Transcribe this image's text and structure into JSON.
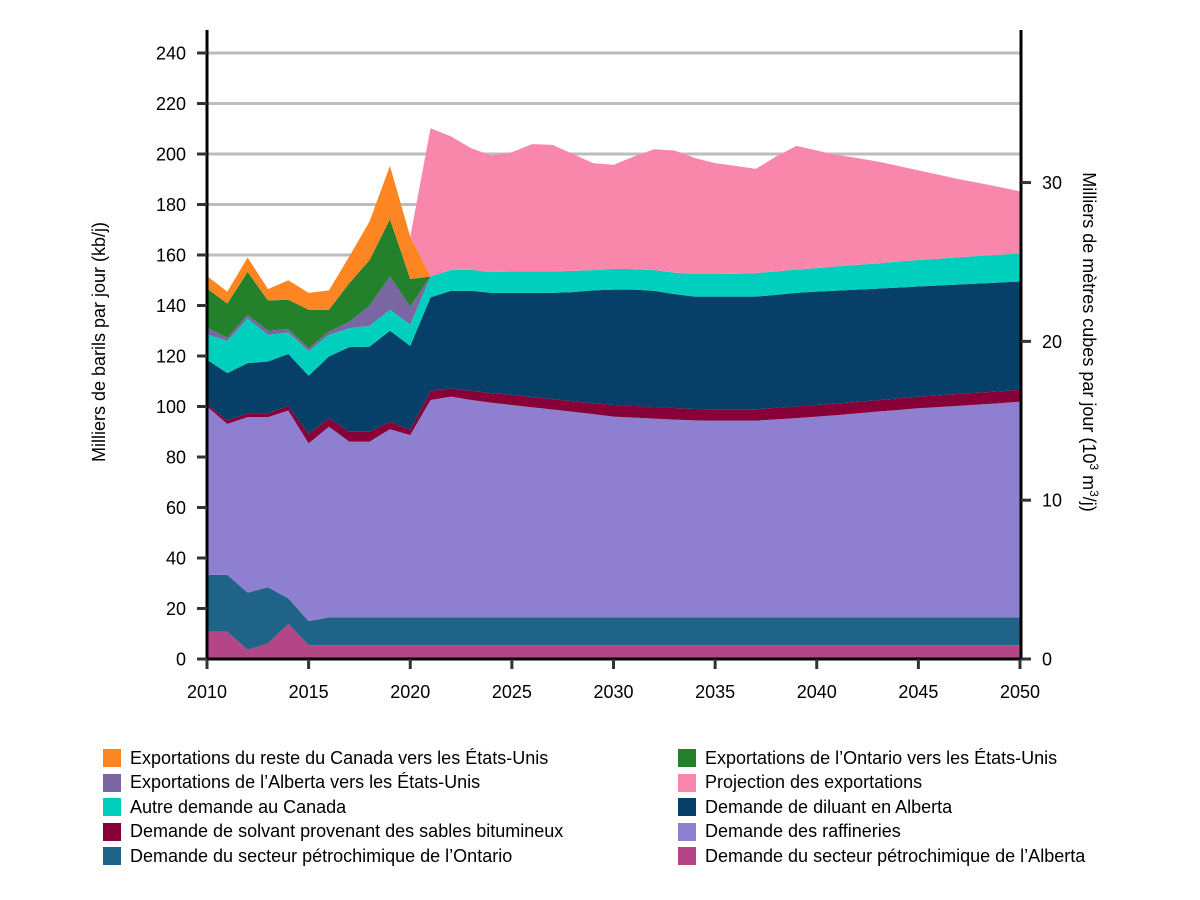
{
  "chart_data": {
    "type": "area",
    "stacked": true,
    "title": "",
    "xlabel": "",
    "ylabel": "Milliers de barils par jour (kb/j)",
    "ylabel_right": "Milliers de mètres cubes par jour (10³ m³/j)",
    "ylabel_right_parts": {
      "pre": "Milliers de mètres cubes par jour (10",
      "sup1": "3",
      "mid": " m",
      "sup2": "3",
      "post": "/j)"
    },
    "xlim": [
      2010,
      2050
    ],
    "ylim": [
      0,
      240
    ],
    "ylim_right": [
      0,
      38.16
    ],
    "grid": true,
    "x_ticks": [
      2010,
      2015,
      2020,
      2025,
      2030,
      2035,
      2040,
      2045,
      2050
    ],
    "y_ticks": [
      0,
      20,
      40,
      60,
      80,
      100,
      120,
      140,
      160,
      180,
      200,
      220,
      240
    ],
    "y_ticks_right": [
      0,
      10,
      20,
      30
    ],
    "legend_position": "bottom",
    "x": [
      2010,
      2011,
      2012,
      2013,
      2014,
      2015,
      2016,
      2017,
      2018,
      2019,
      2020,
      2021,
      2022,
      2023,
      2024,
      2025,
      2026,
      2027,
      2028,
      2029,
      2030,
      2031,
      2032,
      2033,
      2034,
      2035,
      2036,
      2037,
      2038,
      2039,
      2040,
      2041,
      2042,
      2043,
      2044,
      2045,
      2046,
      2047,
      2048,
      2049,
      2050
    ],
    "series": [
      {
        "name": "Demande du secteur pétrochimique de l’Alberta",
        "color": "#b44688",
        "values": [
          10.8,
          10.8,
          3.6,
          6.2,
          13.9,
          5.5,
          5.5,
          5.5,
          5.5,
          5.5,
          5.5,
          5.5,
          5.5,
          5.5,
          5.5,
          5.5,
          5.5,
          5.5,
          5.5,
          5.5,
          5.5,
          5.5,
          5.5,
          5.5,
          5.5,
          5.5,
          5.5,
          5.5,
          5.5,
          5.5,
          5.5,
          5.5,
          5.5,
          5.5,
          5.5,
          5.5,
          5.5,
          5.5,
          5.5,
          5.5,
          5.5
        ]
      },
      {
        "name": "Demande du secteur pétrochimique de l’Ontario",
        "color": "#1f6488",
        "values": [
          22.5,
          22.5,
          22.7,
          22.2,
          10.1,
          9.5,
          11,
          11,
          11,
          11,
          11,
          11,
          11,
          11,
          11,
          11,
          11,
          11,
          11,
          11,
          11,
          11,
          11,
          11,
          11,
          11,
          11,
          11,
          11,
          11,
          11,
          11,
          11,
          11,
          11,
          11,
          11,
          11,
          11,
          11,
          11
        ]
      },
      {
        "name": "Demande des raffineries",
        "color": "#8e7fd0",
        "values": [
          66.7,
          59.8,
          69.5,
          67.4,
          74.4,
          70.4,
          75.5,
          69.6,
          69.6,
          74.5,
          72.2,
          86.1,
          87.4,
          86.1,
          85,
          84.1,
          83.2,
          82.3,
          81.4,
          80.5,
          79.5,
          79.1,
          78.7,
          78.3,
          78,
          77.9,
          77.9,
          77.9,
          78.4,
          78.9,
          79.5,
          80.1,
          80.8,
          81.5,
          82.1,
          82.8,
          83.3,
          83.8,
          84.3,
          84.8,
          85.4
        ]
      },
      {
        "name": "Demande de solvant provenant des sables bitumineux",
        "color": "#870037",
        "values": [
          1,
          1.3,
          1.5,
          1.5,
          1.8,
          3.7,
          3.3,
          3.9,
          3.9,
          3,
          2,
          3.6,
          3.3,
          3.6,
          3.8,
          4,
          4,
          4.1,
          4.2,
          4.3,
          4.6,
          4.6,
          4.6,
          4.6,
          4.5,
          4.5,
          4.5,
          4.5,
          4.6,
          4.6,
          4.6,
          4.6,
          4.6,
          4.5,
          4.6,
          4.6,
          4.6,
          4.7,
          4.7,
          4.7,
          4.7
        ]
      },
      {
        "name": "Demande de diluant en Alberta",
        "color": "#063f67",
        "values": [
          17.5,
          18.8,
          19.9,
          20.5,
          20.6,
          23.1,
          24.5,
          33.5,
          33.7,
          36,
          33.3,
          37,
          38.6,
          39.6,
          39.7,
          40.4,
          41.3,
          42.1,
          43.2,
          44.7,
          45.7,
          46.1,
          46,
          45.1,
          44.5,
          44.6,
          44.6,
          44.6,
          44.7,
          45,
          44.9,
          44.7,
          44.4,
          44.2,
          43.9,
          43.6,
          43.5,
          43.3,
          43.2,
          43.1,
          42.9
        ]
      },
      {
        "name": "Autre demande au Canada",
        "color": "#00cfbe",
        "values": [
          10.1,
          12.8,
          17.6,
          10.6,
          8.5,
          9.8,
          8.6,
          7.5,
          8.3,
          8.3,
          8.5,
          8.3,
          8.3,
          8.3,
          8.2,
          8.5,
          8.5,
          8.5,
          8.4,
          8,
          8.2,
          8.1,
          8.2,
          8.5,
          9,
          9,
          9.1,
          9.3,
          9.3,
          9.2,
          9.3,
          9.6,
          9.8,
          10,
          10.3,
          10.5,
          10.6,
          10.8,
          10.9,
          11,
          11.2
        ]
      },
      {
        "name": "Exportations de l’Alberta vers les États-Unis",
        "color": "#7a66a3",
        "values": [
          2.7,
          1.2,
          1.5,
          1.6,
          1.4,
          1,
          1.3,
          2.5,
          8,
          13.2,
          7.1,
          0,
          0,
          0,
          0,
          0,
          0,
          0,
          0,
          0,
          0,
          0,
          0,
          0,
          0,
          0,
          0,
          0,
          0,
          0,
          0,
          0,
          0,
          0,
          0,
          0,
          0,
          0,
          0,
          0,
          0
        ]
      },
      {
        "name": "Exportations de l’Ontario vers les États-Unis",
        "color": "#23812c",
        "values": [
          15.4,
          13.6,
          17,
          12,
          11.6,
          15.3,
          8.6,
          15.3,
          18,
          22.7,
          10.9,
          0,
          0,
          0,
          0,
          0,
          0,
          0,
          0,
          0,
          0,
          0,
          0,
          0,
          0,
          0,
          0,
          0,
          0,
          0,
          0,
          0,
          0,
          0,
          0,
          0,
          0,
          0,
          0,
          0,
          0
        ]
      },
      {
        "name": "Exportations du reste du Canada vers les États-Unis",
        "color": "#fd8622",
        "values": [
          5,
          4.7,
          5.7,
          4.5,
          7.7,
          6.7,
          7.7,
          10.6,
          15.3,
          21.1,
          16.8,
          0,
          0,
          0,
          0,
          0,
          0,
          0,
          0,
          0,
          0,
          0,
          0,
          0,
          0,
          0,
          0,
          0,
          0,
          0,
          0,
          0,
          0,
          0,
          0,
          0,
          0,
          0,
          0,
          0,
          0
        ]
      },
      {
        "name": "Projection des exportations",
        "color": "#f987ab",
        "values": [
          0,
          0,
          0,
          0,
          0,
          0,
          0,
          0,
          0,
          0,
          0,
          58.7,
          52.9,
          48.2,
          46.2,
          47.2,
          50.4,
          50.1,
          46.3,
          42.4,
          41.2,
          44.6,
          47.9,
          48.4,
          45.9,
          43.9,
          42.7,
          41.3,
          45.5,
          49,
          46.6,
          44.1,
          42.3,
          40.3,
          37.9,
          35.5,
          33.3,
          30.9,
          28.9,
          26.8,
          24.5
        ]
      }
    ]
  },
  "legend": {
    "items": [
      {
        "label": "Exportations du reste du Canada vers les États-Unis",
        "color": "#fd8622"
      },
      {
        "label": "Exportations de l’Ontario vers les États-Unis",
        "color": "#23812c"
      },
      {
        "label": "Exportations de l’Alberta vers les États-Unis",
        "color": "#7a66a3"
      },
      {
        "label": "Projection des exportations",
        "color": "#f987ab"
      },
      {
        "label": "Autre demande au Canada",
        "color": "#00cfbe"
      },
      {
        "label": "Demande de diluant en Alberta",
        "color": "#063f67"
      },
      {
        "label": "Demande de solvant provenant des sables bitumineux",
        "color": "#870037"
      },
      {
        "label": "Demande des raffineries",
        "color": "#8e7fd0"
      },
      {
        "label": "Demande du secteur pétrochimique de l’Ontario",
        "color": "#1f6488"
      },
      {
        "label": "Demande du secteur pétrochimique de l’Alberta",
        "color": "#b44688"
      }
    ]
  }
}
